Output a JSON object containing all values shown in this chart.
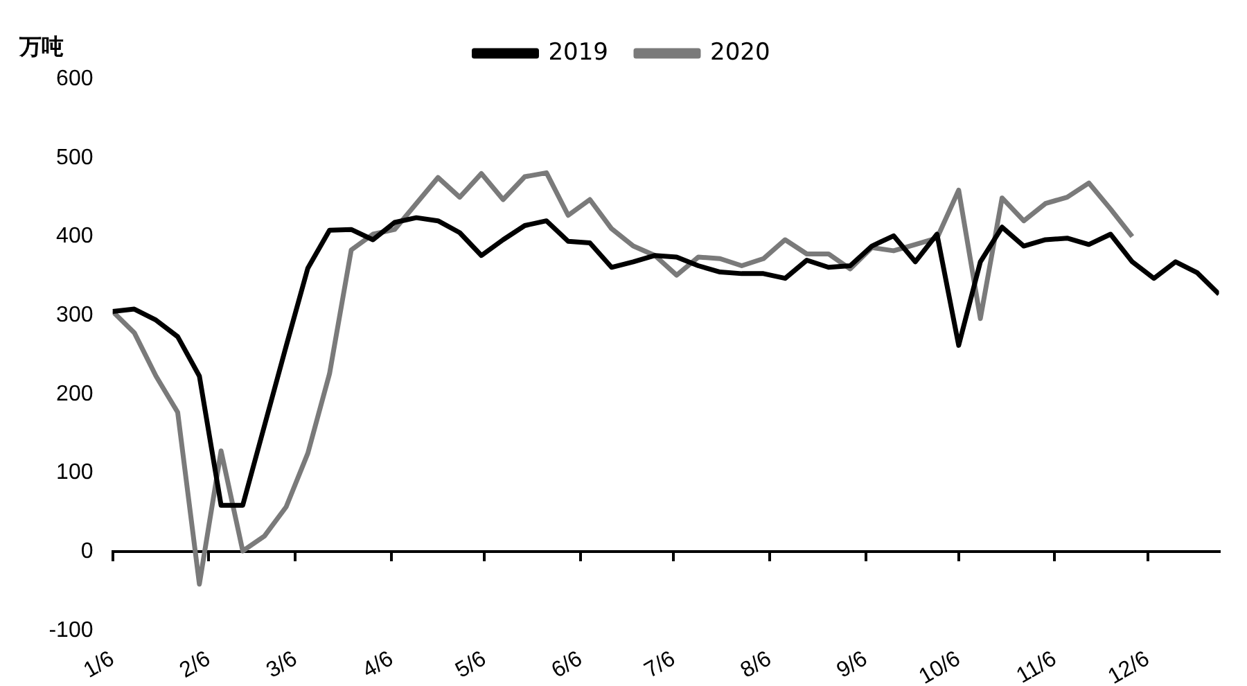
{
  "chart_data": {
    "type": "line",
    "ylabel": "万吨",
    "x": [
      "--01-06",
      "--01-13",
      "--01-20",
      "--01-27",
      "--02-03",
      "--02-10",
      "--02-17",
      "--02-24",
      "--03-03",
      "--03-10",
      "--03-17",
      "--03-24",
      "--03-31",
      "--04-07",
      "--04-14",
      "--04-21",
      "--04-28",
      "--05-05",
      "--05-12",
      "--05-19",
      "--05-26",
      "--06-02",
      "--06-09",
      "--06-16",
      "--06-23",
      "--06-30",
      "--07-07",
      "--07-14",
      "--07-21",
      "--07-28",
      "--08-04",
      "--08-11",
      "--08-18",
      "--08-25",
      "--09-01",
      "--09-08",
      "--09-15",
      "--09-22",
      "--09-29",
      "--10-06",
      "--10-13",
      "--10-20",
      "--10-27",
      "--11-03",
      "--11-10",
      "--11-17",
      "--11-24",
      "--12-01",
      "--12-08",
      "--12-15",
      "--12-22",
      "--12-29"
    ],
    "series": [
      {
        "name": "2019",
        "color": "#000000",
        "values": [
          305,
          308,
          294,
          273,
          223,
          59,
          59,
          160,
          261,
          360,
          408,
          409,
          396,
          418,
          424,
          420,
          405,
          376,
          396,
          414,
          420,
          394,
          392,
          361,
          368,
          376,
          374,
          363,
          355,
          353,
          353,
          347,
          370,
          361,
          363,
          388,
          401,
          368,
          403,
          262,
          368,
          412,
          388,
          396,
          398,
          390,
          403,
          368,
          347,
          368,
          354,
          327
        ]
      },
      {
        "name": "2020",
        "color": "#7a7a7a",
        "values": [
          305,
          278,
          223,
          177,
          -41,
          128,
          1,
          20,
          57,
          125,
          226,
          383,
          403,
          409,
          442,
          475,
          450,
          480,
          447,
          476,
          481,
          427,
          447,
          410,
          388,
          376,
          351,
          374,
          372,
          363,
          372,
          396,
          378,
          378,
          359,
          386,
          382,
          390,
          398,
          459,
          296,
          449,
          420,
          442,
          450,
          468,
          435,
          400,
          null,
          null,
          null,
          null
        ]
      }
    ],
    "xlim": [
      "--01-06",
      "--12-29"
    ],
    "xticks": [
      {
        "value": "--01-06",
        "label": "1/6"
      },
      {
        "value": "--02-06",
        "label": "2/6"
      },
      {
        "value": "--03-06",
        "label": "3/6"
      },
      {
        "value": "--04-06",
        "label": "4/6"
      },
      {
        "value": "--05-06",
        "label": "5/6"
      },
      {
        "value": "--06-06",
        "label": "6/6"
      },
      {
        "value": "--07-06",
        "label": "7/6"
      },
      {
        "value": "--08-06",
        "label": "8/6"
      },
      {
        "value": "--09-06",
        "label": "9/6"
      },
      {
        "value": "--10-06",
        "label": "10/6"
      },
      {
        "value": "--11-06",
        "label": "11/6"
      },
      {
        "value": "--12-06",
        "label": "12/6"
      }
    ],
    "ylim": [
      -100,
      600
    ],
    "yticks": [
      -100,
      0,
      100,
      200,
      300,
      400,
      500,
      600
    ],
    "legend": "top",
    "line_style": "solid",
    "marker": "none"
  }
}
